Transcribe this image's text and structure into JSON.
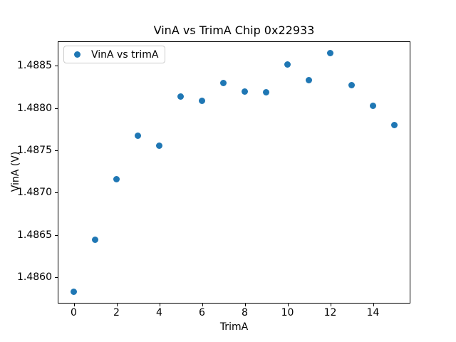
{
  "chart_data": {
    "type": "scatter",
    "title": "VinA vs TrimA Chip 0x22933",
    "xlabel": "TrimA",
    "ylabel": "VinA (V)",
    "legend": {
      "entries": [
        "VinA vs trimA"
      ],
      "position": "upper left"
    },
    "marker_color": "#1f77b4",
    "x": [
      0,
      1,
      2,
      3,
      4,
      5,
      6,
      7,
      8,
      9,
      10,
      11,
      12,
      13,
      14,
      15
    ],
    "y": [
      1.48583,
      1.48644,
      1.48716,
      1.48767,
      1.48756,
      1.48814,
      1.48809,
      1.4883,
      1.4882,
      1.48819,
      1.48852,
      1.48833,
      1.48865,
      1.48827,
      1.48803,
      1.4878
    ],
    "xlim": [
      -0.75,
      15.75
    ],
    "ylim": [
      1.48569,
      1.48879
    ],
    "xticks": [
      0,
      2,
      4,
      6,
      8,
      10,
      12,
      14
    ],
    "yticks": [
      1.486,
      1.4865,
      1.487,
      1.4875,
      1.488,
      1.4885
    ],
    "ytick_labels": [
      "1.4860",
      "1.4865",
      "1.4870",
      "1.4875",
      "1.4880",
      "1.4885"
    ],
    "grid": false
  }
}
